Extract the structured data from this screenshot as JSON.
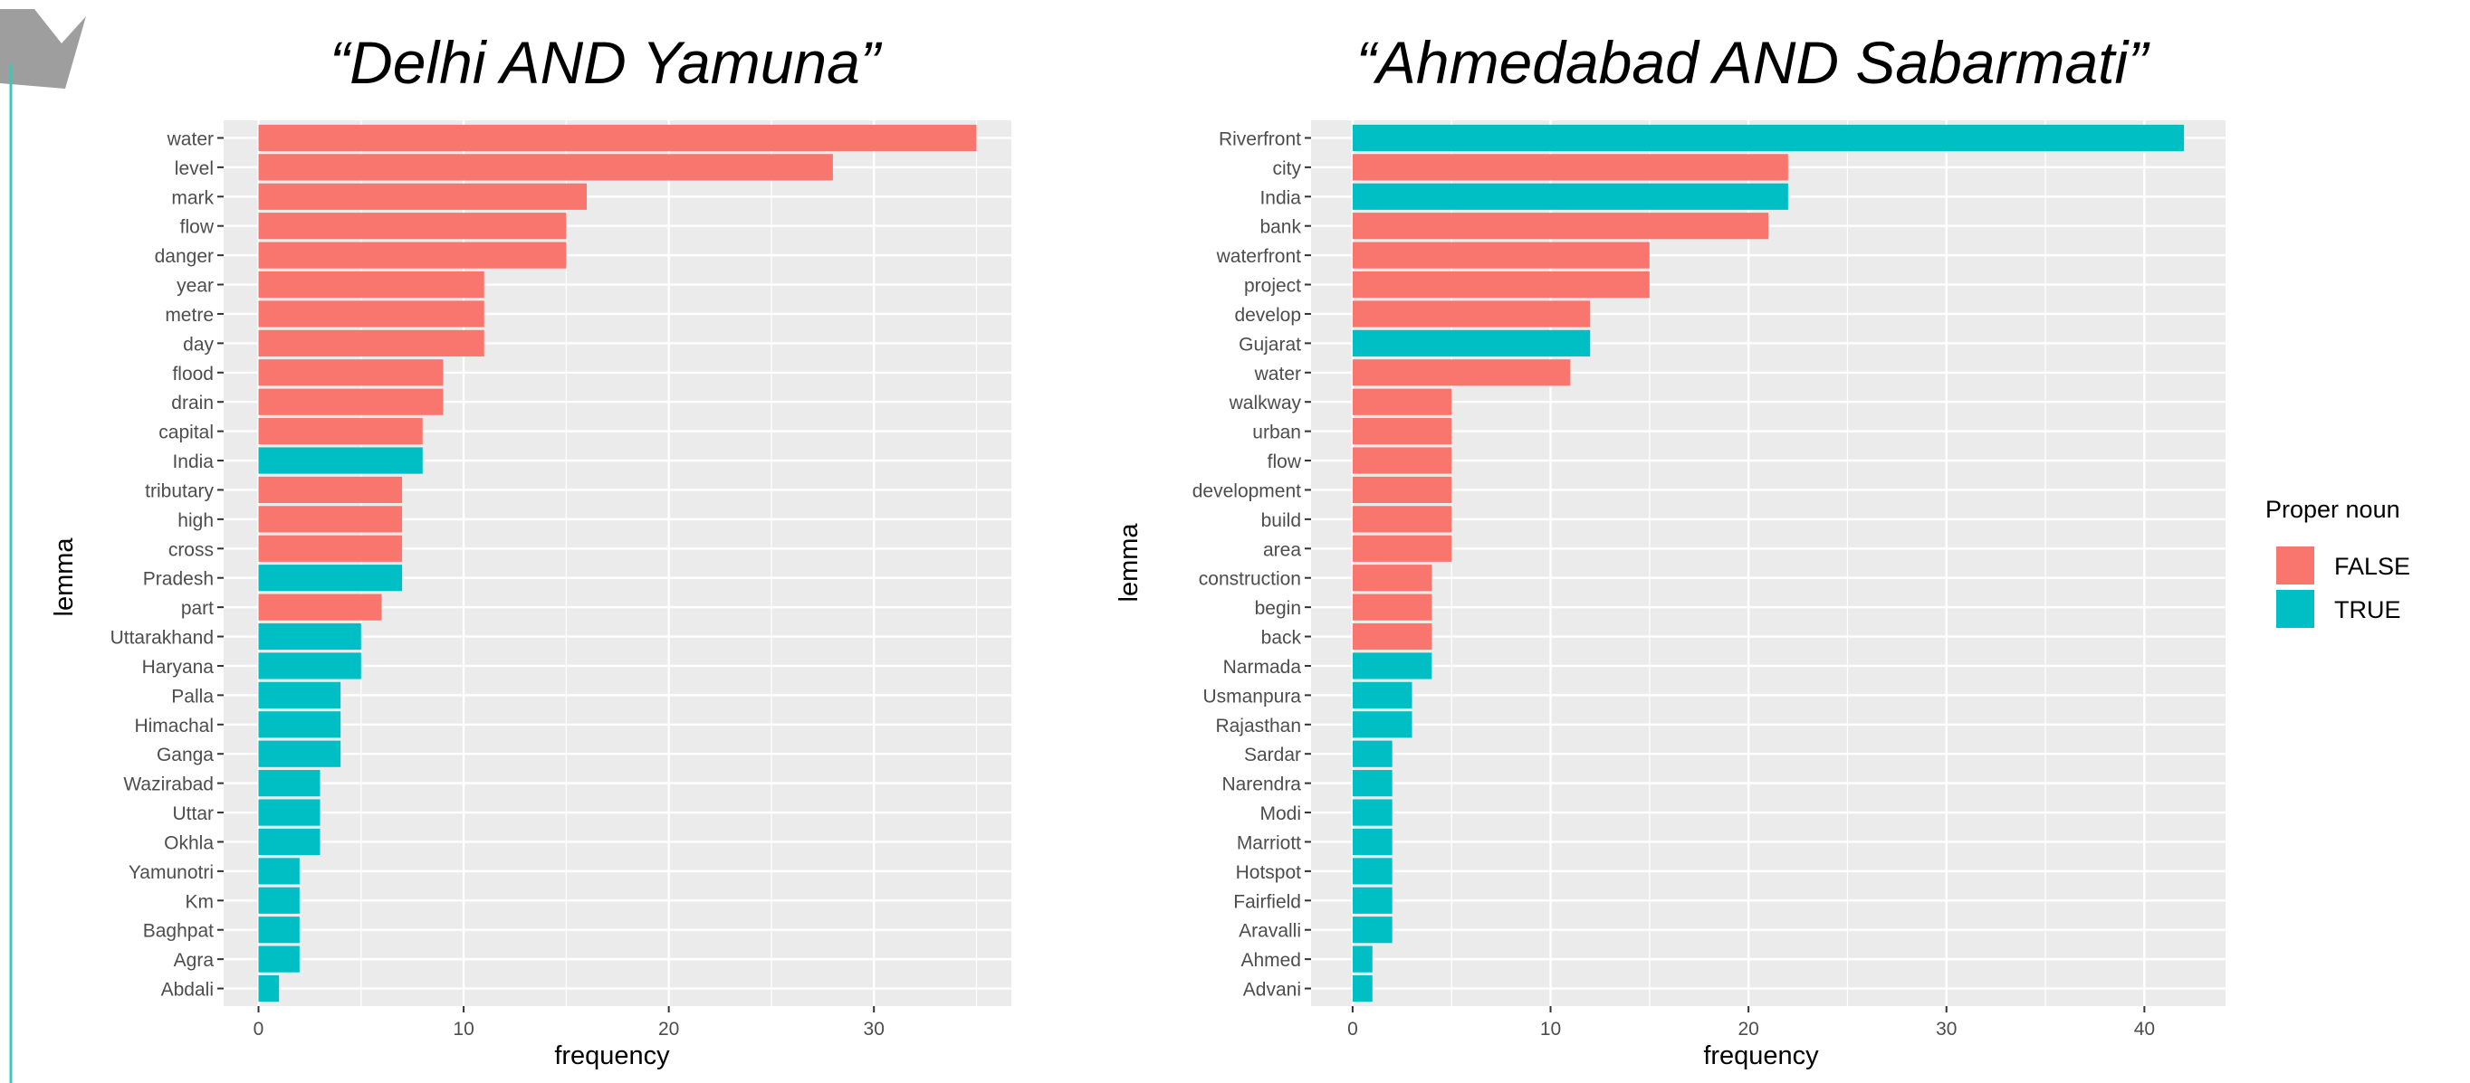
{
  "colors": {
    "false": "#F8766D",
    "true": "#00BFC4",
    "panel": "#EBEBEB",
    "grid": "#FFFFFF",
    "accent_line": "#3CC8B4",
    "corner_arrow": "#9E9E9E"
  },
  "legend": {
    "title": "Proper noun",
    "items": [
      {
        "label": "FALSE",
        "key": "false"
      },
      {
        "label": "TRUE",
        "key": "true"
      }
    ],
    "placement": "right"
  },
  "chart_data": [
    {
      "type": "bar",
      "orientation": "horizontal",
      "title": "“Delhi AND Yamuna”",
      "xlabel": "frequency",
      "ylabel": "lemma",
      "xlim": [
        -1.7,
        36.7
      ],
      "xticks": [
        0,
        10,
        20,
        30
      ],
      "grid": true,
      "bars": [
        {
          "lemma": "water",
          "value": 35,
          "proper": false
        },
        {
          "lemma": "level",
          "value": 28,
          "proper": false
        },
        {
          "lemma": "mark",
          "value": 16,
          "proper": false
        },
        {
          "lemma": "flow",
          "value": 15,
          "proper": false
        },
        {
          "lemma": "danger",
          "value": 15,
          "proper": false
        },
        {
          "lemma": "year",
          "value": 11,
          "proper": false
        },
        {
          "lemma": "metre",
          "value": 11,
          "proper": false
        },
        {
          "lemma": "day",
          "value": 11,
          "proper": false
        },
        {
          "lemma": "flood",
          "value": 9,
          "proper": false
        },
        {
          "lemma": "drain",
          "value": 9,
          "proper": false
        },
        {
          "lemma": "capital",
          "value": 8,
          "proper": false
        },
        {
          "lemma": "India",
          "value": 8,
          "proper": true
        },
        {
          "lemma": "tributary",
          "value": 7,
          "proper": false
        },
        {
          "lemma": "high",
          "value": 7,
          "proper": false
        },
        {
          "lemma": "cross",
          "value": 7,
          "proper": false
        },
        {
          "lemma": "Pradesh",
          "value": 7,
          "proper": true
        },
        {
          "lemma": "part",
          "value": 6,
          "proper": false
        },
        {
          "lemma": "Uttarakhand",
          "value": 5,
          "proper": true
        },
        {
          "lemma": "Haryana",
          "value": 5,
          "proper": true
        },
        {
          "lemma": "Palla",
          "value": 4,
          "proper": true
        },
        {
          "lemma": "Himachal",
          "value": 4,
          "proper": true
        },
        {
          "lemma": "Ganga",
          "value": 4,
          "proper": true
        },
        {
          "lemma": "Wazirabad",
          "value": 3,
          "proper": true
        },
        {
          "lemma": "Uttar",
          "value": 3,
          "proper": true
        },
        {
          "lemma": "Okhla",
          "value": 3,
          "proper": true
        },
        {
          "lemma": "Yamunotri",
          "value": 2,
          "proper": true
        },
        {
          "lemma": "Km",
          "value": 2,
          "proper": true
        },
        {
          "lemma": "Baghpat",
          "value": 2,
          "proper": true
        },
        {
          "lemma": "Agra",
          "value": 2,
          "proper": true
        },
        {
          "lemma": "Abdali",
          "value": 1,
          "proper": true
        }
      ]
    },
    {
      "type": "bar",
      "orientation": "horizontal",
      "title": "“Ahmedabad AND Sabarmati”",
      "xlabel": "frequency",
      "ylabel": "lemma",
      "xlim": [
        -2.1,
        44.1
      ],
      "xticks": [
        0,
        10,
        20,
        30,
        40
      ],
      "grid": true,
      "bars": [
        {
          "lemma": "Riverfront",
          "value": 42,
          "proper": true
        },
        {
          "lemma": "city",
          "value": 22,
          "proper": false
        },
        {
          "lemma": "India",
          "value": 22,
          "proper": true
        },
        {
          "lemma": "bank",
          "value": 21,
          "proper": false
        },
        {
          "lemma": "waterfront",
          "value": 15,
          "proper": false
        },
        {
          "lemma": "project",
          "value": 15,
          "proper": false
        },
        {
          "lemma": "develop",
          "value": 12,
          "proper": false
        },
        {
          "lemma": "Gujarat",
          "value": 12,
          "proper": true
        },
        {
          "lemma": "water",
          "value": 11,
          "proper": false
        },
        {
          "lemma": "walkway",
          "value": 5,
          "proper": false
        },
        {
          "lemma": "urban",
          "value": 5,
          "proper": false
        },
        {
          "lemma": "flow",
          "value": 5,
          "proper": false
        },
        {
          "lemma": "development",
          "value": 5,
          "proper": false
        },
        {
          "lemma": "build",
          "value": 5,
          "proper": false
        },
        {
          "lemma": "area",
          "value": 5,
          "proper": false
        },
        {
          "lemma": "construction",
          "value": 4,
          "proper": false
        },
        {
          "lemma": "begin",
          "value": 4,
          "proper": false
        },
        {
          "lemma": "back",
          "value": 4,
          "proper": false
        },
        {
          "lemma": "Narmada",
          "value": 4,
          "proper": true
        },
        {
          "lemma": "Usmanpura",
          "value": 3,
          "proper": true
        },
        {
          "lemma": "Rajasthan",
          "value": 3,
          "proper": true
        },
        {
          "lemma": "Sardar",
          "value": 2,
          "proper": true
        },
        {
          "lemma": "Narendra",
          "value": 2,
          "proper": true
        },
        {
          "lemma": "Modi",
          "value": 2,
          "proper": true
        },
        {
          "lemma": "Marriott",
          "value": 2,
          "proper": true
        },
        {
          "lemma": "Hotspot",
          "value": 2,
          "proper": true
        },
        {
          "lemma": "Fairfield",
          "value": 2,
          "proper": true
        },
        {
          "lemma": "Aravalli",
          "value": 2,
          "proper": true
        },
        {
          "lemma": "Ahmed",
          "value": 1,
          "proper": true
        },
        {
          "lemma": "Advani",
          "value": 1,
          "proper": true
        }
      ]
    }
  ]
}
